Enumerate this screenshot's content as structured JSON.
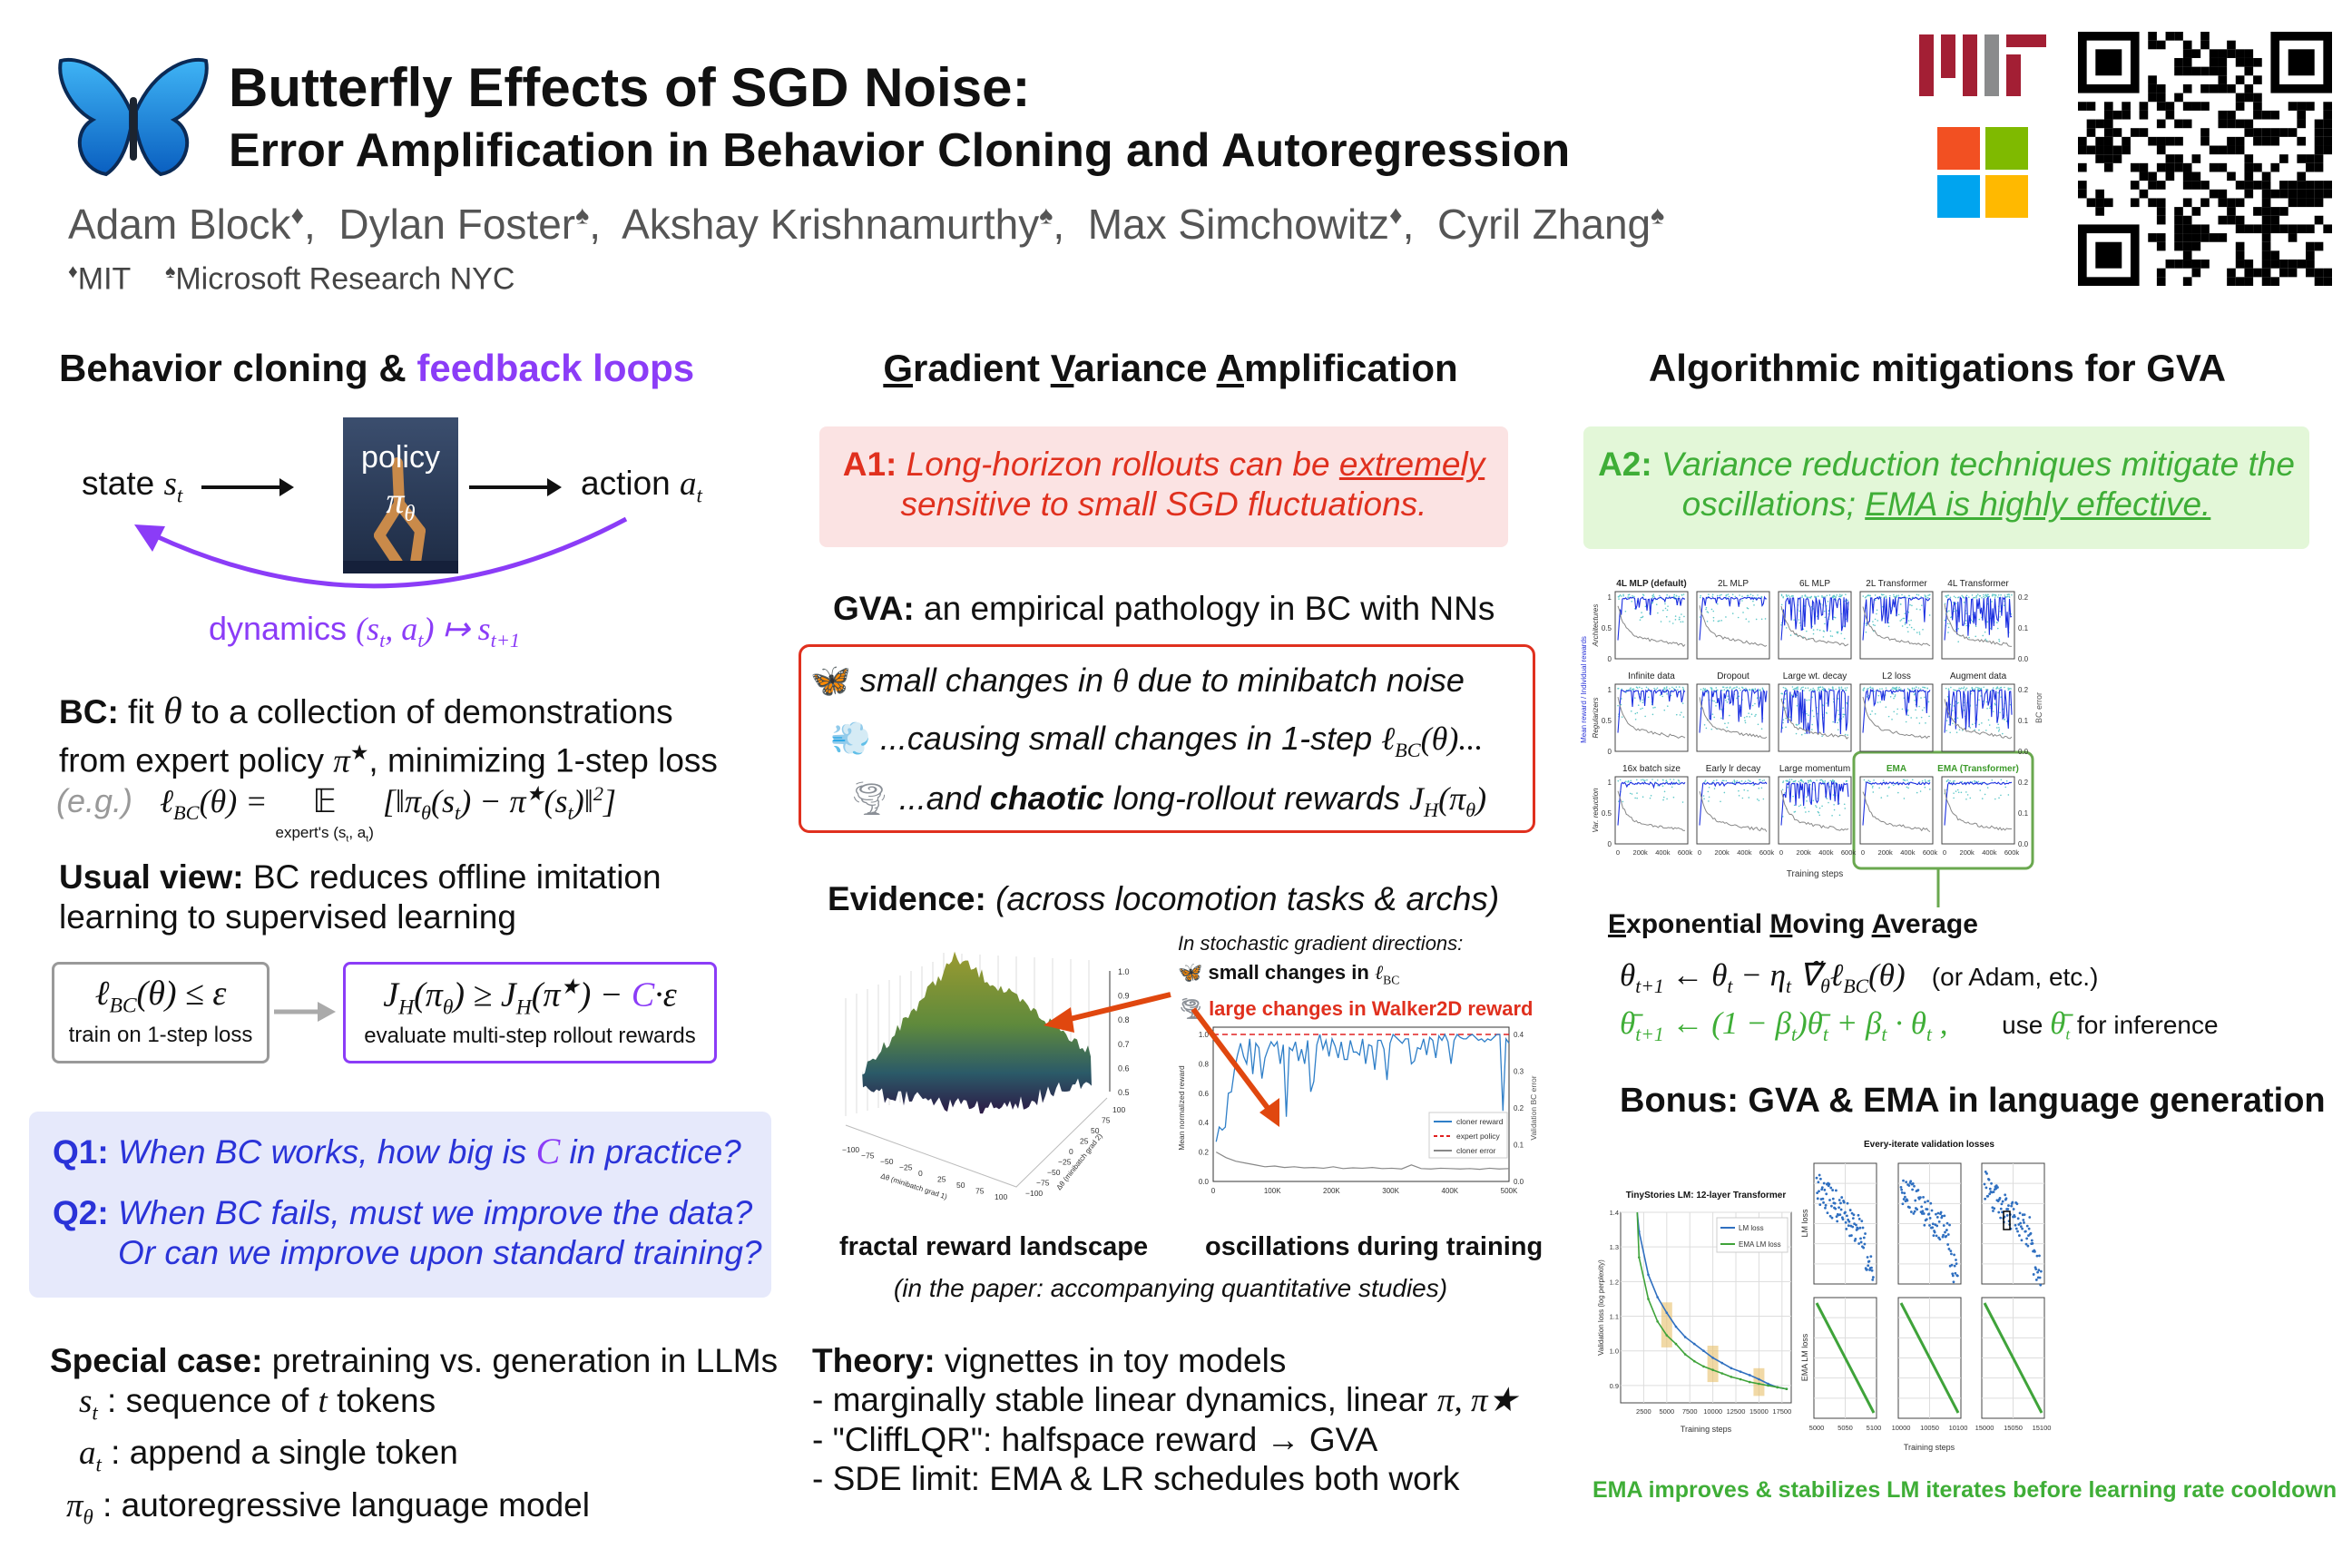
{
  "header": {
    "title": "Butterfly Effects of SGD Noise:",
    "subtitle": "Error Amplification in Behavior Cloning and Autoregression",
    "authors": [
      {
        "name": "Adam Block",
        "mark": "♦"
      },
      {
        "name": "Dylan Foster",
        "mark": "♠"
      },
      {
        "name": "Akshay Krishnamurthy",
        "mark": "♠"
      },
      {
        "name": "Max Simchowitz",
        "mark": "♦"
      },
      {
        "name": "Cyril Zhang",
        "mark": "♠"
      }
    ],
    "sep": ",",
    "affiliations": [
      {
        "mark": "♦",
        "name": "MIT"
      },
      {
        "mark": "♠",
        "name": "Microsoft Research NYC"
      }
    ],
    "logos": {
      "mit": "MIT",
      "microsoft": "Microsoft",
      "qr": "QR code"
    }
  },
  "col1": {
    "heading_a": "Behavior cloning & ",
    "heading_b": "feedback loops",
    "diagram": {
      "state": "state ",
      "s": "s",
      "t": "t",
      "policy": "policy",
      "pi": "π",
      "theta": "θ",
      "action": "action ",
      "a": "a",
      "dynamics": "dynamics ",
      "d1": "(s",
      "d2": ", a",
      "d3": ") ↦ s",
      "d4": "t+1"
    },
    "bc": {
      "label": "BC:",
      "t1": " fit ",
      "theta": "θ",
      "t2": " to a collection of demonstrations",
      "t3": "from expert policy ",
      "pi": "π",
      "star": "★",
      "t4": ", minimizing 1-step loss"
    },
    "eg": {
      "label": "(e.g.)",
      "l": "ℓ",
      "bc": "BC",
      "f1": "(θ) = ",
      "E": "𝔼",
      "under": "expert's (s",
      "t": "t",
      "under2": ", a",
      "under3": ")",
      "f2": "[‖π",
      "theta": "θ",
      "f3": "(s",
      "f4": ") − π",
      "star": "★",
      "f5": "(s",
      "f6": ")‖",
      "two": "2",
      "f7": "]"
    },
    "usual": {
      "label": "Usual view:",
      "t1": " BC reduces offline imitation",
      "t2": "learning to supervised learning"
    },
    "box1": {
      "l": "ℓ",
      "bc": "BC",
      "f": "(θ) ≤ ε",
      "caption": "train on 1-step loss"
    },
    "box2": {
      "J": "J",
      "H": "H",
      "f1": "(π",
      "theta": "θ",
      "f2": ") ≥ ",
      "star": "★",
      "f3": "(π",
      "f4": ") − ",
      "C": "C",
      "f5": "·ε",
      "caption": "evaluate multi-step rollout rewards"
    },
    "q1": {
      "label": "Q1:",
      "t1": " When BC works, how big is ",
      "C": "C",
      "t2": " in practice?"
    },
    "q2": {
      "label": "Q2:",
      "t1": " When BC fails, must we improve the data?",
      "t2": "Or can we improve upon standard training?"
    },
    "special": {
      "label": "Special case:",
      "t1": " pretraining vs. generation in LLMs",
      "items": [
        {
          "sym": "s",
          "sub": "t",
          "text": " : sequence of ",
          "var": "t",
          "tail": " tokens"
        },
        {
          "sym": "a",
          "sub": "t",
          "text": " : append a single token",
          "var": "",
          "tail": ""
        },
        {
          "sym": "π",
          "sub": "θ",
          "text": " : autoregressive language model",
          "var": "",
          "tail": ""
        }
      ]
    }
  },
  "col2": {
    "heading": [
      "G",
      "radient ",
      "V",
      "ariance ",
      "A",
      "mplification"
    ],
    "a1": {
      "label": "A1:",
      "t1": " Long-horizon rollouts can be ",
      "em": "extremely",
      "t2": "sensitive to small SGD fluctuations."
    },
    "gva": {
      "label": "GVA:",
      "t1": " an empirical pathology in BC with NNs"
    },
    "box": {
      "l1a": "small changes in ",
      "theta": "θ",
      "l1b": " due to minibatch noise",
      "l2a": "...causing small changes in 1-step ",
      "l": "ℓ",
      "bc": "BC",
      "l2b": "(θ)...",
      "l3a": "...and ",
      "chaotic": "chaotic",
      "l3b": " long-rollout rewards ",
      "J": "J",
      "H": "H",
      "l3c": "(π",
      "th": "θ",
      "l3d": ")"
    },
    "evidence": {
      "label": "Evidence:",
      "t1": " (across locomotion tasks & archs)"
    },
    "annot": {
      "t1": "In stochastic gradient directions:",
      "t2": "small changes in ",
      "l": "ℓ",
      "bc": "BC",
      "t3": "large changes in Walker2D reward"
    },
    "cap1": "fractal reward landscape",
    "cap2": "oscillations during training",
    "cap3": "(in the paper: accompanying quantitative studies)",
    "theory": {
      "label": "Theory:",
      "t1": " vignettes in toy models",
      "bullets": [
        {
          "dash": "- ",
          "text": "marginally stable linear dynamics, linear ",
          "math": "π, π★"
        },
        {
          "dash": "- ",
          "text": "\"CliffLQR\": halfspace reward → GVA",
          "math": ""
        },
        {
          "dash": "- ",
          "text": "SDE limit: EMA & LR schedules both work",
          "math": ""
        }
      ]
    }
  },
  "col3": {
    "heading": "Algorithmic mitigations for GVA",
    "a2": {
      "label": "A2:",
      "t1": " Variance reduction techniques mitigate the",
      "t2": "oscillations; ",
      "em": "EMA is highly effective."
    },
    "ema_heading": [
      "E",
      "xponential ",
      "M",
      "oving ",
      "A",
      "verage"
    ],
    "eq1": {
      "a": "θ",
      "b": "t+1",
      "c": " ← θ",
      "d": "t",
      "e": " − η",
      "f": "t",
      "g": " ∇̃",
      "h": "θ",
      "i": "ℓ",
      "j": "BC",
      "k": "(θ)",
      "note": "(or Adam, etc.)"
    },
    "eq2": {
      "a": "θ̄",
      "b": "t+1",
      "c": " ← (1 − β",
      "d": "t",
      "e": ")θ̄",
      "f": "t",
      "g": " + β",
      "h": "t",
      "i": " · θ",
      "j": "t",
      "k": " ,",
      "use": "use ",
      "ub": "θ̄",
      "ut": "t",
      "tail": " for inference"
    },
    "bonus": "Bonus: GVA & EMA in language generation",
    "caption": "EMA improves & stabilizes LM iterates before learning rate cooldown"
  },
  "colors": {
    "purple": "#8b3cf7",
    "blue": "#2a33d8",
    "red": "#e0301e",
    "green": "#3fae37",
    "orange": "#e0470f"
  },
  "chart_data": [
    {
      "id": "landscape",
      "type": "surface",
      "title": "fractal reward landscape",
      "xlabel": "Δθ (minibatch grad 1)",
      "ylabel": "Δθ (minibatch grad 2)",
      "xticks": [
        "−100",
        "−75",
        "−50",
        "−25",
        "0",
        "25",
        "50",
        "75",
        "100"
      ],
      "yticks": [
        "−100",
        "−75",
        "−50",
        "−25",
        "0",
        "25",
        "50",
        "75",
        "100"
      ],
      "zticks": [
        "0.5",
        "0.6",
        "0.7",
        "0.8",
        "0.9",
        "1.0"
      ],
      "zlim": [
        0.5,
        1.0
      ],
      "peak": 0.97
    },
    {
      "id": "walker",
      "type": "line",
      "xlabel": "",
      "ylabel": "Mean normalized reward",
      "ylabel2": "Validation BC error",
      "xlim": [
        0,
        500000
      ],
      "ylim": [
        0,
        1.0
      ],
      "ylim2": [
        0,
        0.4
      ],
      "xticks": [
        "0",
        "100K",
        "200K",
        "300K",
        "400K",
        "500K"
      ],
      "yticks": [
        "0.0",
        "0.2",
        "0.4",
        "0.6",
        "0.8",
        "1.0"
      ],
      "yticks2": [
        "0.0",
        "0.1",
        "0.2",
        "0.3",
        "0.4"
      ],
      "legend": [
        "cloner reward",
        "expert policy",
        "cloner error"
      ],
      "legend_pos": "lower-right",
      "cloner_reward": [
        0.27,
        0.37,
        0.35,
        0.37,
        0.6,
        0.61,
        0.76,
        0.86,
        0.94,
        0.85,
        0.8,
        0.97,
        0.73,
        0.94,
        0.91,
        0.7,
        0.84,
        0.9,
        0.95,
        0.92,
        0.95,
        0.8,
        0.93,
        0.44,
        0.91,
        0.89,
        0.95,
        0.82,
        0.9,
        0.8,
        0.96,
        0.61,
        0.68,
        0.93,
        1.0,
        0.9,
        0.96,
        0.85,
        0.97,
        0.92,
        0.84,
        0.95,
        0.83,
        0.83,
        0.96,
        0.88,
        0.88,
        0.86,
        0.97,
        0.8,
        0.93,
        0.92,
        0.76,
        0.96,
        0.96,
        0.9,
        0.69,
        0.94,
        1.0,
        0.98,
        0.96,
        0.94,
        0.97,
        0.97,
        0.8,
        0.82,
        0.91,
        0.9,
        0.97,
        0.86,
        0.98,
        0.96,
        0.84,
        0.99,
        0.96,
        1.0,
        0.95,
        0.8,
        0.96,
        1.0,
        0.98,
        0.97,
        0.97,
        0.99,
        1.0,
        0.98,
        0.96,
        0.97,
        0.95,
        0.97,
        0.96,
        0.98,
        1.0,
        1.0,
        0.48,
        0.97,
        0.94
      ],
      "expert_policy": 1.0,
      "cloner_error": [
        0.08,
        0.065,
        0.055,
        0.05,
        0.045,
        0.04,
        0.042,
        0.038,
        0.04,
        0.037,
        0.038,
        0.036,
        0.04,
        0.035,
        0.037,
        0.036,
        0.038,
        0.035,
        0.036,
        0.034,
        0.045,
        0.035,
        0.034,
        0.036,
        0.035,
        0.034,
        0.035,
        0.033,
        0.036,
        0.034,
        0.035
      ]
    },
    {
      "id": "grid",
      "type": "line",
      "xlabel": "Training steps",
      "ylabel": "Mean reward / Individual rewards",
      "ylabel2": "BC error",
      "xticks": [
        "0",
        "200k",
        "400k",
        "600k"
      ],
      "yticks": [
        "0",
        "0.5",
        "1"
      ],
      "yticks2": [
        "0.0",
        "0.1",
        "0.2"
      ],
      "rows": [
        "Architectures",
        "Regularizers",
        "Var. reduction"
      ],
      "panels": [
        {
          "title": "4L MLP (default)",
          "osc": 0.25,
          "highlight": false
        },
        {
          "title": "2L MLP",
          "osc": 0.15,
          "highlight": false
        },
        {
          "title": "6L MLP",
          "osc": 0.5,
          "highlight": false
        },
        {
          "title": "2L Transformer",
          "osc": 0.4,
          "highlight": false
        },
        {
          "title": "4L Transformer",
          "osc": 0.55,
          "highlight": false
        },
        {
          "title": "Infinite data",
          "osc": 0.25,
          "highlight": false
        },
        {
          "title": "Dropout",
          "osc": 0.45,
          "highlight": false
        },
        {
          "title": "Large wt. decay",
          "osc": 0.6,
          "highlight": false
        },
        {
          "title": "L2 loss",
          "osc": 0.35,
          "highlight": false
        },
        {
          "title": "Augment data",
          "osc": 0.55,
          "highlight": false
        },
        {
          "title": "16x batch size",
          "osc": 0.08,
          "highlight": false
        },
        {
          "title": "Early lr decay",
          "osc": 0.05,
          "highlight": false
        },
        {
          "title": "Large momentum",
          "osc": 0.35,
          "highlight": false
        },
        {
          "title": "EMA",
          "osc": 0.02,
          "highlight": true
        },
        {
          "title": "EMA (Transformer)",
          "osc": 0.03,
          "highlight": true
        }
      ]
    },
    {
      "id": "tinystories",
      "type": "line",
      "title": "TinyStories LM: 12-layer Transformer",
      "xlabel": "Training steps",
      "ylabel": "Validation loss (log perplexity)",
      "xlim": [
        0,
        18500
      ],
      "ylim": [
        0.85,
        1.4
      ],
      "xticks": [
        "2500",
        "5000",
        "7500",
        "10000",
        "12500",
        "15000",
        "17500"
      ],
      "yticks": [
        "0.9",
        "1.0",
        "1.1",
        "1.2",
        "1.3",
        "1.4"
      ],
      "legend": [
        "LM loss",
        "EMA LM loss"
      ],
      "legend_pos": "top-right",
      "x": [
        2000,
        3000,
        4000,
        5000,
        6000,
        7000,
        8000,
        9000,
        10000,
        11000,
        12000,
        13000,
        14000,
        15000,
        16000,
        17000,
        18000
      ],
      "lm_loss": [
        1.345,
        1.22,
        1.155,
        1.11,
        1.07,
        1.04,
        1.02,
        1.0,
        0.98,
        0.965,
        0.95,
        0.94,
        0.93,
        0.918,
        0.905,
        0.895,
        0.89
      ],
      "ema_lm_loss": [
        1.27,
        1.15,
        1.085,
        1.045,
        1.02,
        0.99,
        0.97,
        0.955,
        0.945,
        0.935,
        0.925,
        0.918,
        0.91,
        0.905,
        0.9,
        0.895,
        0.89
      ],
      "highlights": [
        5000,
        10000,
        15000
      ]
    },
    {
      "id": "every_iterate",
      "type": "scatter",
      "title": "Every-iterate validation losses",
      "xlabel": "Training steps",
      "ylabels": [
        "LM loss",
        "EMA LM loss"
      ],
      "windows": [
        {
          "xticks": [
            "5000",
            "5050",
            "5100"
          ]
        },
        {
          "xticks": [
            "10000",
            "10050",
            "10100"
          ]
        },
        {
          "xticks": [
            "15000",
            "15050",
            "15100"
          ]
        }
      ]
    }
  ]
}
